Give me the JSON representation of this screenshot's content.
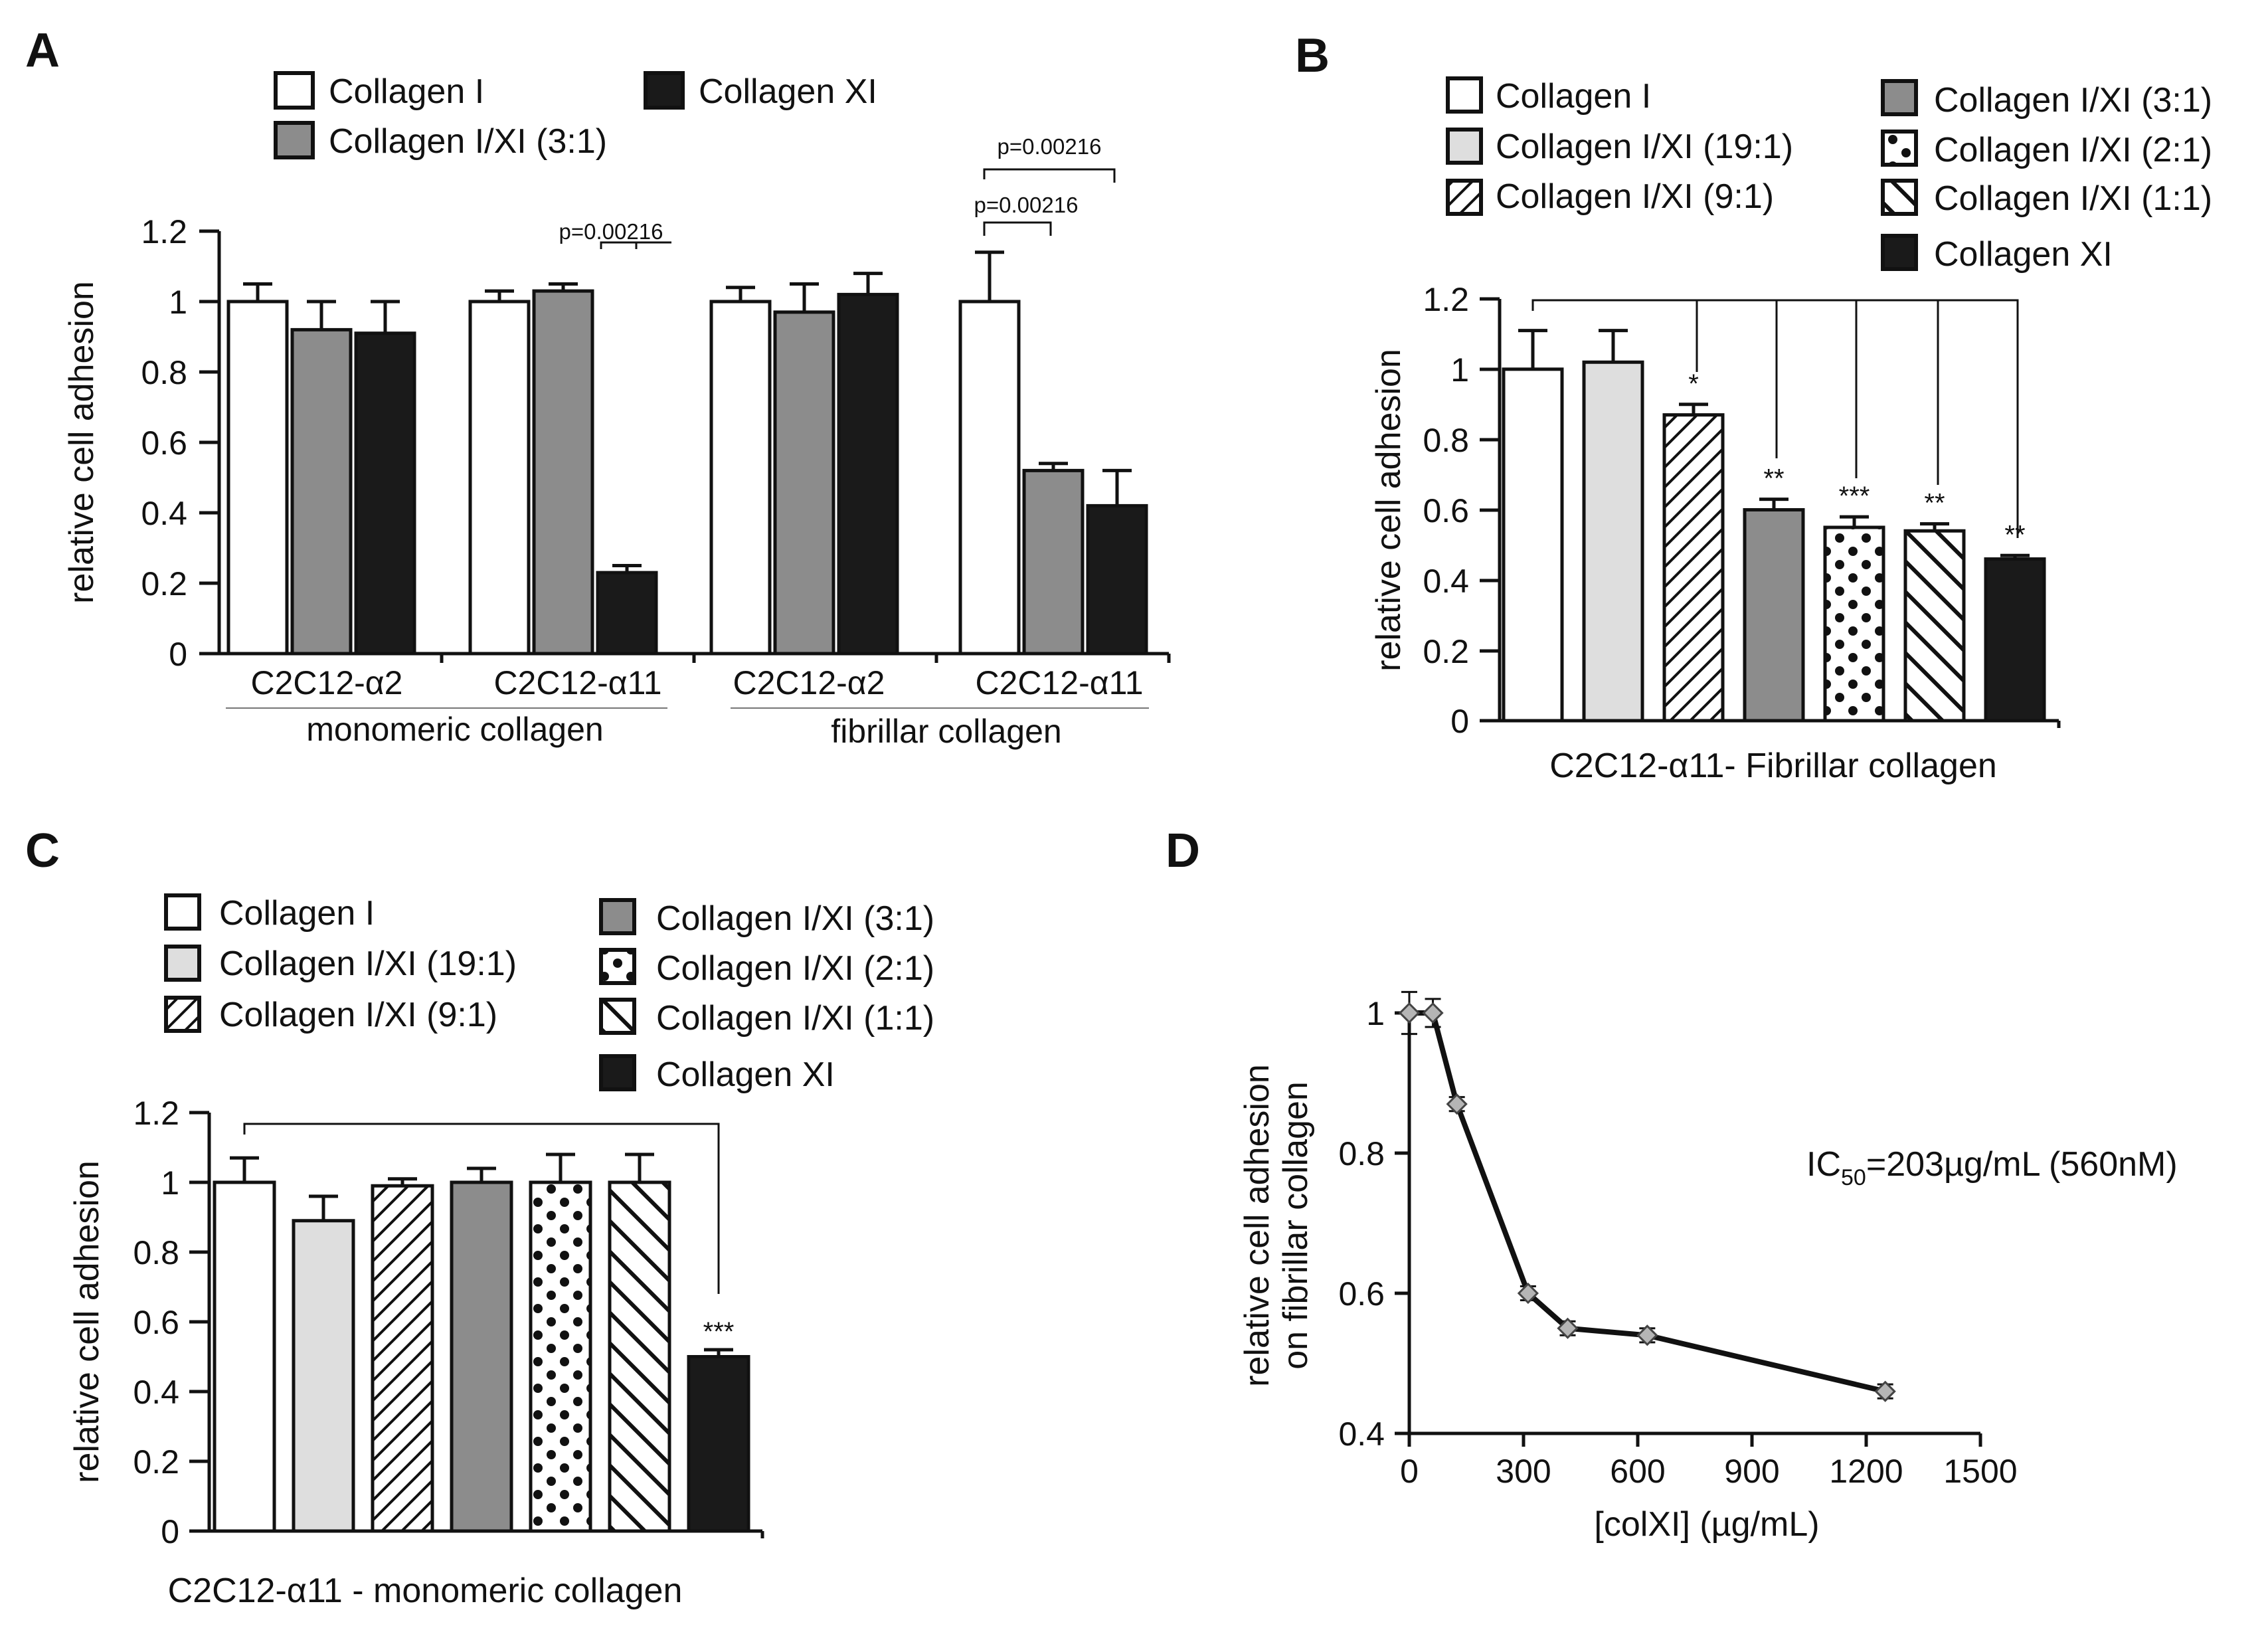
{
  "panels": {
    "A": {
      "letter": "A",
      "chart_data": {
        "type": "bar",
        "ylabel": "relative cell adhesion",
        "ylim": [
          0,
          1.2
        ],
        "yticks": [
          "0",
          "0.2",
          "0.4",
          "0.6",
          "0.8",
          "1",
          "1.2"
        ],
        "legend": [
          {
            "label": "Collagen I",
            "fill": "white"
          },
          {
            "label": "Collagen XI",
            "fill": "black"
          },
          {
            "label": "Collagen I/XI (3:1)",
            "fill": "grey"
          }
        ],
        "categories": [
          "C2C12-α2",
          "C2C12-α11",
          "C2C12-α2",
          "C2C12-α11"
        ],
        "groups": [
          "monomeric collagen",
          "fibrillar collagen"
        ],
        "series": [
          {
            "name": "Collagen I",
            "fill": "white",
            "values": [
              1.0,
              1.0,
              1.0,
              1.0
            ],
            "errors": [
              0.05,
              0.03,
              0.04,
              0.14
            ]
          },
          {
            "name": "Collagen I/XI (3:1)",
            "fill": "grey",
            "values": [
              0.92,
              1.03,
              0.97,
              0.52
            ],
            "errors": [
              0.08,
              0.02,
              0.08,
              0.02
            ]
          },
          {
            "name": "Collagen XI",
            "fill": "black",
            "values": [
              0.91,
              0.23,
              1.02,
              0.42
            ],
            "errors": [
              0.09,
              0.02,
              0.06,
              0.1
            ]
          }
        ],
        "annotations": [
          "p=0.00216",
          "p=0.00216",
          "p=0.00216"
        ]
      }
    },
    "B": {
      "letter": "B",
      "chart_data": {
        "type": "bar",
        "ylabel": "relative cell adhesion",
        "xlabel": "C2C12-α11- Fibrillar collagen",
        "ylim": [
          0,
          1.2
        ],
        "yticks": [
          "0",
          "0.2",
          "0.4",
          "0.6",
          "0.8",
          "1",
          "1.2"
        ],
        "legend": [
          {
            "label": "Collagen I",
            "fill": "white"
          },
          {
            "label": "Collagen I/XI (19:1)",
            "fill": "lightgrey"
          },
          {
            "label": "Collagen I/XI (9:1)",
            "fill": "hatch"
          },
          {
            "label": "Collagen I/XI (3:1)",
            "fill": "grey"
          },
          {
            "label": "Collagen I/XI (2:1)",
            "fill": "dots"
          },
          {
            "label": "Collagen I/XI (1:1)",
            "fill": "backhatch"
          },
          {
            "label": "Collagen XI",
            "fill": "black"
          }
        ],
        "values": [
          1.0,
          1.02,
          0.87,
          0.6,
          0.55,
          0.54,
          0.46
        ],
        "errors": [
          0.11,
          0.09,
          0.03,
          0.03,
          0.03,
          0.02,
          0.01
        ],
        "significance": [
          "",
          "",
          "*",
          "**",
          "***",
          "**",
          "**"
        ]
      }
    },
    "C": {
      "letter": "C",
      "chart_data": {
        "type": "bar",
        "ylabel": "relative cell adhesion",
        "xlabel": "C2C12-α11 - monomeric collagen",
        "ylim": [
          0,
          1.2
        ],
        "yticks": [
          "0",
          "0.2",
          "0.4",
          "0.6",
          "0.8",
          "1",
          "1.2"
        ],
        "legend": [
          {
            "label": "Collagen I",
            "fill": "white"
          },
          {
            "label": "Collagen I/XI (19:1)",
            "fill": "lightgrey"
          },
          {
            "label": "Collagen I/XI (9:1)",
            "fill": "hatch"
          },
          {
            "label": "Collagen I/XI (3:1)",
            "fill": "grey"
          },
          {
            "label": "Collagen I/XI (2:1)",
            "fill": "dots"
          },
          {
            "label": "Collagen I/XI (1:1)",
            "fill": "backhatch"
          },
          {
            "label": "Collagen XI",
            "fill": "black"
          }
        ],
        "values": [
          1.0,
          0.89,
          0.99,
          1.0,
          1.0,
          1.0,
          0.5
        ],
        "errors": [
          0.07,
          0.07,
          0.02,
          0.04,
          0.08,
          0.08,
          0.02
        ],
        "significance": [
          "",
          "",
          "",
          "",
          "",
          "",
          "***"
        ]
      }
    },
    "D": {
      "letter": "D",
      "chart_data": {
        "type": "line",
        "ylabel_line1": "relative cell adhesion",
        "ylabel_line2": "on fibrillar collagen",
        "xlabel": "[colXI] (µg/mL)",
        "xlim": [
          0,
          1500
        ],
        "ylim": [
          0.4,
          1.0
        ],
        "xticks": [
          "0",
          "300",
          "600",
          "900",
          "1200",
          "1500"
        ],
        "yticks": [
          "0.4",
          "0.6",
          "0.8",
          "1"
        ],
        "x": [
          0,
          62,
          125,
          312,
          416,
          625,
          1250
        ],
        "y": [
          1.0,
          1.0,
          0.87,
          0.6,
          0.55,
          0.54,
          0.46
        ],
        "errors": [
          0.03,
          0.02,
          0.01,
          0.01,
          0.01,
          0.01,
          0.01
        ],
        "annotation": {
          "prefix": "IC",
          "subscript": "50",
          "suffix": "=203µg/mL (560nM)"
        }
      }
    }
  }
}
